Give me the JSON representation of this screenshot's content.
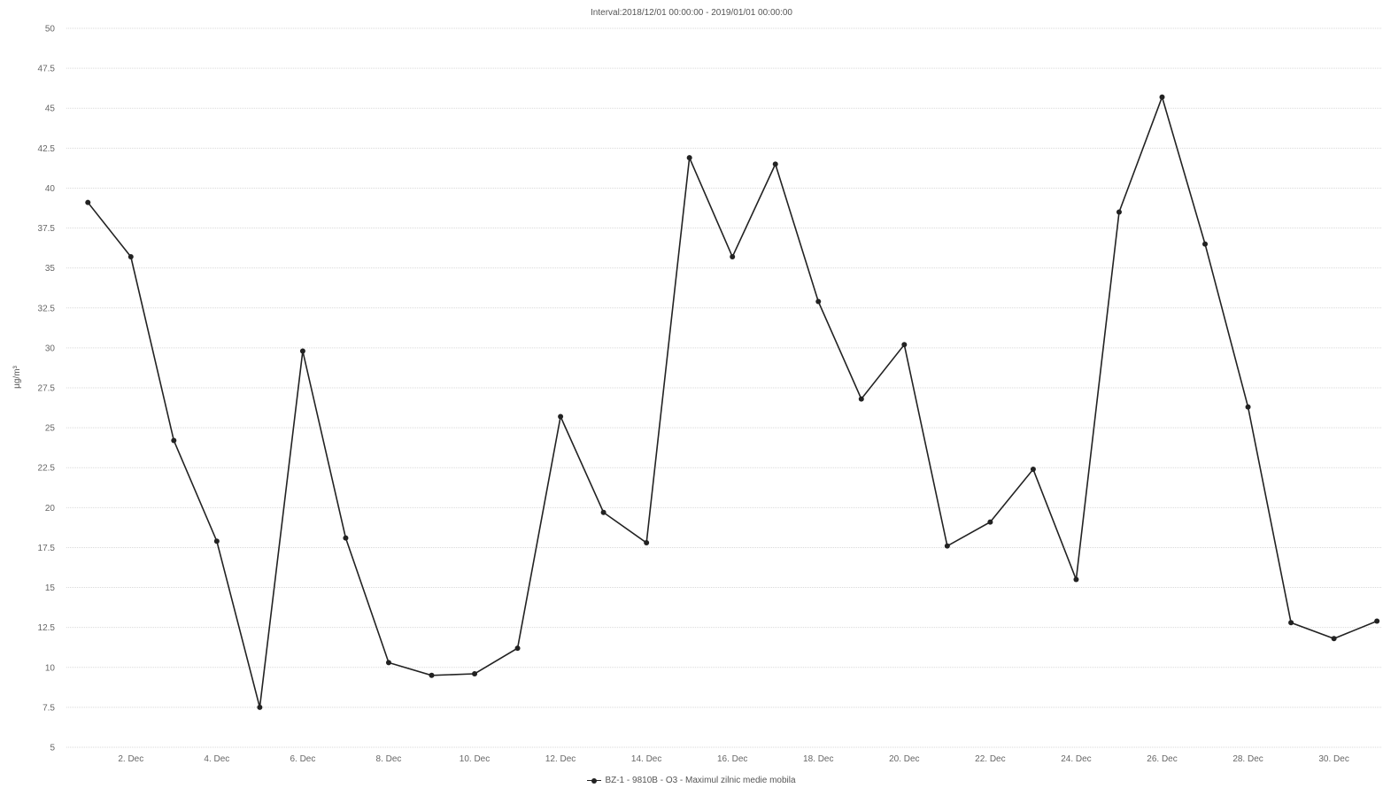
{
  "chart_data": {
    "type": "line",
    "title": "Interval:2018/12/01 00:00:00 - 2019/01/01 00:00:00",
    "xlabel": "",
    "ylabel": "µg/m³",
    "ylim": [
      5,
      50
    ],
    "y_ticks": [
      5,
      7.5,
      10,
      12.5,
      15,
      17.5,
      20,
      22.5,
      25,
      27.5,
      30,
      32.5,
      35,
      37.5,
      40,
      42.5,
      45,
      47.5,
      50
    ],
    "x_tick_labels": [
      "2. Dec",
      "4. Dec",
      "6. Dec",
      "8. Dec",
      "10. Dec",
      "12. Dec",
      "14. Dec",
      "16. Dec",
      "18. Dec",
      "20. Dec",
      "22. Dec",
      "24. Dec",
      "26. Dec",
      "28. Dec",
      "30. Dec"
    ],
    "x_tick_days": [
      2,
      4,
      6,
      8,
      10,
      12,
      14,
      16,
      18,
      20,
      22,
      24,
      26,
      28,
      30
    ],
    "grid": true,
    "legend_position": "bottom-center",
    "series": [
      {
        "name": "BZ-1 - 9810B - O3 - Maximul zilnic medie mobila",
        "color": "#222222",
        "x": [
          1,
          2,
          3,
          4,
          5,
          6,
          7,
          8,
          9,
          10,
          11,
          12,
          13,
          14,
          15,
          16,
          17,
          18,
          19,
          20,
          21,
          22,
          23,
          24,
          25,
          26,
          27,
          28,
          29,
          30,
          31
        ],
        "values": [
          39.1,
          35.7,
          24.2,
          17.9,
          7.5,
          29.8,
          18.1,
          10.3,
          9.5,
          9.6,
          11.2,
          25.7,
          19.7,
          17.8,
          41.9,
          35.7,
          41.5,
          32.9,
          26.8,
          30.2,
          17.6,
          19.1,
          22.4,
          15.5,
          38.5,
          45.7,
          36.5,
          26.3,
          12.8,
          11.8,
          12.9
        ]
      }
    ]
  }
}
